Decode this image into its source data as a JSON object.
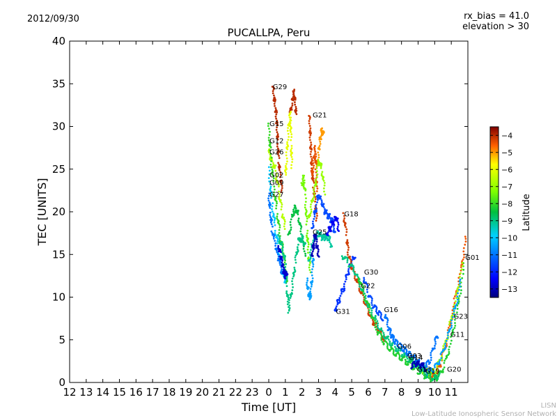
{
  "header": {
    "date": "2012/09/30",
    "rx_bias": "rx_bias = 41.0",
    "elevation": "elevation > 30"
  },
  "credit": {
    "line1": "LISN",
    "line2": "Low-Latitude Ionospheric Sensor Network"
  },
  "chart_data": {
    "type": "scatter",
    "title": "PUCALLPA, Peru",
    "xlabel": "Time [UT]",
    "ylabel": "TEC [UNITS]",
    "ylim": [
      0,
      40
    ],
    "yticks": [
      0,
      5,
      10,
      15,
      20,
      25,
      30,
      35,
      40
    ],
    "xlim": [
      -12,
      12
    ],
    "xtick_labels": [
      "12",
      "13",
      "14",
      "15",
      "16",
      "17",
      "18",
      "19",
      "20",
      "21",
      "22",
      "23",
      "0",
      "1",
      "2",
      "3",
      "4",
      "5",
      "6",
      "7",
      "8",
      "9",
      "10",
      "11"
    ],
    "colorbar": {
      "label": "Latitude",
      "range": [
        -13.5,
        -3.5
      ],
      "ticks": [
        -4,
        -5,
        -6,
        -7,
        -8,
        -9,
        -10,
        -11,
        -12,
        -13
      ],
      "tick_labels": [
        "−4",
        "−5",
        "−6",
        "−7",
        "−8",
        "−9",
        "−10",
        "−11",
        "−12",
        "−13"
      ]
    },
    "satellite_labels": [
      {
        "name": "G29",
        "x": 0.2,
        "y": 34.6
      },
      {
        "name": "G21",
        "x": 2.6,
        "y": 31.3
      },
      {
        "name": "G15",
        "x": 0.0,
        "y": 30.3
      },
      {
        "name": "G12",
        "x": 0.0,
        "y": 28.3
      },
      {
        "name": "G26",
        "x": 0.0,
        "y": 27.0
      },
      {
        "name": "G02",
        "x": 0.0,
        "y": 24.3
      },
      {
        "name": "G09",
        "x": 0.0,
        "y": 23.4
      },
      {
        "name": "G27",
        "x": 0.0,
        "y": 22.0
      },
      {
        "name": "G18",
        "x": 4.5,
        "y": 19.7
      },
      {
        "name": "G25",
        "x": 2.6,
        "y": 17.6
      },
      {
        "name": "G01",
        "x": 11.8,
        "y": 14.6
      },
      {
        "name": "G30",
        "x": 5.7,
        "y": 12.9
      },
      {
        "name": "G22",
        "x": 5.5,
        "y": 11.3
      },
      {
        "name": "G31",
        "x": 4.0,
        "y": 8.3
      },
      {
        "name": "G16",
        "x": 6.9,
        "y": 8.5
      },
      {
        "name": "G23",
        "x": 11.1,
        "y": 7.7
      },
      {
        "name": "G11",
        "x": 10.9,
        "y": 5.6
      },
      {
        "name": "G06",
        "x": 7.7,
        "y": 4.2
      },
      {
        "name": "G03",
        "x": 8.3,
        "y": 3.1
      },
      {
        "name": "G14",
        "x": 8.4,
        "y": 2.9
      },
      {
        "name": "G13",
        "x": 8.9,
        "y": 1.5
      },
      {
        "name": "G19",
        "x": 9.4,
        "y": 1.3
      },
      {
        "name": "G20",
        "x": 10.7,
        "y": 1.5
      }
    ],
    "traces": [
      {
        "lat": -4.0,
        "points": [
          [
            0.25,
            34.5
          ],
          [
            0.35,
            33
          ],
          [
            0.45,
            31.5
          ],
          [
            0.5,
            30
          ],
          [
            0.55,
            28
          ],
          [
            0.6,
            26
          ],
          [
            0.7,
            24
          ],
          [
            0.8,
            22.5
          ]
        ]
      },
      {
        "lat": -4.0,
        "points": [
          [
            1.3,
            31.5
          ],
          [
            1.4,
            32.8
          ],
          [
            1.5,
            34
          ],
          [
            1.6,
            33
          ],
          [
            1.65,
            31
          ]
        ]
      },
      {
        "lat": -4.2,
        "points": [
          [
            2.45,
            31
          ],
          [
            2.5,
            29
          ],
          [
            2.55,
            27
          ],
          [
            2.6,
            25
          ],
          [
            2.7,
            23
          ],
          [
            2.8,
            21
          ],
          [
            2.9,
            19
          ]
        ]
      },
      {
        "lat": -5.0,
        "points": [
          [
            2.9,
            25
          ],
          [
            3.0,
            27
          ],
          [
            3.1,
            28.5
          ],
          [
            3.2,
            29.5
          ],
          [
            3.3,
            29
          ]
        ]
      },
      {
        "lat": -4.4,
        "points": [
          [
            2.6,
            24
          ],
          [
            2.7,
            26
          ],
          [
            2.8,
            27.5
          ],
          [
            2.85,
            25
          ],
          [
            2.9,
            22
          ]
        ]
      },
      {
        "lat": -6.0,
        "points": [
          [
            1.0,
            24
          ],
          [
            1.1,
            27
          ],
          [
            1.2,
            30
          ],
          [
            1.3,
            31.5
          ],
          [
            1.35,
            28
          ],
          [
            1.4,
            25
          ]
        ]
      },
      {
        "lat": -6.6,
        "points": [
          [
            0.0,
            27
          ],
          [
            0.2,
            26
          ],
          [
            0.4,
            25
          ],
          [
            0.6,
            22.5
          ],
          [
            0.8,
            20
          ],
          [
            1.0,
            18
          ]
        ]
      },
      {
        "lat": -7.0,
        "points": [
          [
            2.4,
            19
          ],
          [
            2.6,
            21
          ],
          [
            2.8,
            23
          ],
          [
            3.0,
            26
          ],
          [
            3.2,
            25
          ],
          [
            3.4,
            22
          ]
        ]
      },
      {
        "lat": -7.4,
        "points": [
          [
            2.0,
            23
          ],
          [
            2.1,
            24
          ],
          [
            2.2,
            22
          ],
          [
            2.3,
            18
          ],
          [
            2.4,
            15
          ],
          [
            2.5,
            13
          ]
        ]
      },
      {
        "lat": -8.0,
        "points": [
          [
            0.0,
            30
          ],
          [
            0.1,
            27
          ],
          [
            0.3,
            23
          ],
          [
            0.5,
            20
          ],
          [
            0.7,
            17
          ],
          [
            0.9,
            15
          ],
          [
            1.0,
            13
          ],
          [
            1.1,
            12
          ]
        ]
      },
      {
        "lat": -8.5,
        "points": [
          [
            1.2,
            17
          ],
          [
            1.4,
            19.5
          ],
          [
            1.6,
            20.5
          ],
          [
            1.8,
            19.5
          ],
          [
            2.0,
            17
          ],
          [
            2.2,
            15
          ]
        ]
      },
      {
        "lat": -9.0,
        "points": [
          [
            0.6,
            17
          ],
          [
            0.8,
            16
          ],
          [
            1.0,
            14
          ],
          [
            1.1,
            11
          ],
          [
            1.2,
            8.5
          ],
          [
            1.4,
            11
          ],
          [
            1.6,
            14
          ],
          [
            1.8,
            16.5
          ],
          [
            2.0,
            17
          ],
          [
            2.2,
            16
          ]
        ]
      },
      {
        "lat": -9.2,
        "points": [
          [
            2.4,
            14
          ],
          [
            2.6,
            16
          ],
          [
            2.8,
            17
          ],
          [
            3.0,
            17.5
          ],
          [
            3.2,
            17
          ],
          [
            3.4,
            17
          ],
          [
            3.6,
            17
          ],
          [
            3.8,
            16
          ]
        ]
      },
      {
        "lat": -10.0,
        "points": [
          [
            0.0,
            25
          ],
          [
            0.2,
            21
          ],
          [
            0.4,
            18
          ],
          [
            0.6,
            15.5
          ],
          [
            0.8,
            13
          ],
          [
            1.0,
            12
          ]
        ]
      },
      {
        "lat": -10.5,
        "points": [
          [
            2.3,
            12
          ],
          [
            2.4,
            10.5
          ],
          [
            2.5,
            10
          ],
          [
            2.6,
            12
          ],
          [
            2.7,
            15
          ]
        ]
      },
      {
        "lat": -11.0,
        "points": [
          [
            0.0,
            22
          ],
          [
            0.1,
            20
          ],
          [
            0.2,
            18
          ],
          [
            0.4,
            16
          ],
          [
            0.6,
            14.5
          ],
          [
            0.8,
            13
          ]
        ]
      },
      {
        "lat": -11.5,
        "points": [
          [
            2.6,
            18
          ],
          [
            2.8,
            20
          ],
          [
            3.0,
            22
          ],
          [
            3.2,
            21
          ],
          [
            3.4,
            20
          ],
          [
            3.6,
            19.5
          ],
          [
            3.8,
            19
          ],
          [
            4.0,
            17.5
          ]
        ]
      },
      {
        "lat": -11.8,
        "points": [
          [
            4.0,
            8.5
          ],
          [
            4.2,
            9.5
          ],
          [
            4.5,
            11
          ],
          [
            4.8,
            13
          ],
          [
            5.0,
            14
          ],
          [
            5.2,
            15
          ]
        ]
      },
      {
        "lat": -12.8,
        "points": [
          [
            0.6,
            16
          ],
          [
            0.7,
            15
          ],
          [
            0.8,
            14
          ],
          [
            0.9,
            13
          ],
          [
            1.0,
            12.5
          ],
          [
            1.1,
            13
          ]
        ]
      },
      {
        "lat": -12.5,
        "points": [
          [
            3.5,
            17.5
          ],
          [
            3.7,
            18
          ],
          [
            3.9,
            18.8
          ],
          [
            4.1,
            19.3
          ],
          [
            4.2,
            18
          ]
        ]
      },
      {
        "lat": -13.0,
        "points": [
          [
            2.6,
            15
          ],
          [
            2.7,
            16
          ],
          [
            2.8,
            17.5
          ],
          [
            2.9,
            16
          ],
          [
            3.0,
            15
          ]
        ]
      },
      {
        "lat": -4.2,
        "points": [
          [
            4.5,
            20
          ],
          [
            4.7,
            17
          ],
          [
            4.8,
            15
          ],
          [
            5.0,
            13.5
          ],
          [
            5.3,
            12
          ],
          [
            5.6,
            10.5
          ],
          [
            5.9,
            9
          ],
          [
            6.2,
            7.5
          ],
          [
            6.5,
            6.5
          ],
          [
            6.8,
            5.5
          ],
          [
            7.0,
            4.8
          ]
        ]
      },
      {
        "lat": -9.0,
        "points": [
          [
            4.4,
            15
          ],
          [
            4.8,
            14
          ],
          [
            5.2,
            13
          ],
          [
            5.6,
            11
          ],
          [
            6.0,
            9
          ],
          [
            6.4,
            7.5
          ],
          [
            6.8,
            6
          ],
          [
            7.2,
            5
          ],
          [
            7.6,
            4.2
          ],
          [
            8.0,
            3.5
          ],
          [
            8.4,
            2.8
          ],
          [
            8.8,
            2.2
          ],
          [
            9.2,
            1.8
          ],
          [
            9.6,
            1.5
          ]
        ]
      },
      {
        "lat": -11.5,
        "points": [
          [
            5.7,
            12.5
          ],
          [
            6.0,
            10.5
          ],
          [
            6.3,
            9
          ],
          [
            6.6,
            8.2
          ],
          [
            6.9,
            7.5
          ]
        ]
      },
      {
        "lat": -11.0,
        "points": [
          [
            7.0,
            8.2
          ],
          [
            7.2,
            6.5
          ],
          [
            7.4,
            5.5
          ],
          [
            7.6,
            4.8
          ],
          [
            7.9,
            4.3
          ],
          [
            8.2,
            3.8
          ],
          [
            8.5,
            3.3
          ],
          [
            8.8,
            2.8
          ],
          [
            9.1,
            2.2
          ],
          [
            9.4,
            1.8
          ],
          [
            9.7,
            2.5
          ],
          [
            10.0,
            4.5
          ],
          [
            10.2,
            5.8
          ]
        ]
      },
      {
        "lat": -8.2,
        "points": [
          [
            5.4,
            12.5
          ],
          [
            5.8,
            10
          ],
          [
            6.2,
            7.8
          ],
          [
            6.6,
            5.8
          ],
          [
            7.0,
            4.6
          ],
          [
            7.4,
            3.8
          ],
          [
            7.8,
            3.2
          ],
          [
            8.2,
            2.6
          ],
          [
            8.6,
            2.0
          ],
          [
            9.0,
            1.4
          ],
          [
            9.4,
            0.8
          ],
          [
            9.8,
            0.4
          ],
          [
            10.2,
            0.6
          ],
          [
            10.6,
            2
          ],
          [
            11.0,
            5
          ],
          [
            11.4,
            9
          ],
          [
            11.8,
            14
          ]
        ]
      },
      {
        "lat": -4.5,
        "points": [
          [
            9.5,
            1.2
          ],
          [
            9.8,
            0.8
          ],
          [
            10.1,
            1.0
          ],
          [
            10.4,
            2.5
          ],
          [
            10.8,
            5.5
          ],
          [
            11.2,
            9.5
          ],
          [
            11.6,
            13.5
          ],
          [
            11.9,
            17
          ]
        ]
      },
      {
        "lat": -6.8,
        "points": [
          [
            9.3,
            1.5
          ],
          [
            9.7,
            1.0
          ],
          [
            10.1,
            1.5
          ],
          [
            10.5,
            3.5
          ],
          [
            10.9,
            6.5
          ],
          [
            11.3,
            10
          ],
          [
            11.7,
            14
          ]
        ]
      },
      {
        "lat": -10.5,
        "points": [
          [
            8.8,
            2.2
          ],
          [
            9.2,
            1.6
          ],
          [
            9.6,
            1.2
          ],
          [
            10.0,
            1.6
          ],
          [
            10.4,
            3
          ],
          [
            10.8,
            5.5
          ],
          [
            11.2,
            8.5
          ],
          [
            11.6,
            12
          ]
        ]
      },
      {
        "lat": -8.8,
        "points": [
          [
            8.4,
            2.8
          ],
          [
            8.8,
            2.2
          ],
          [
            9.2,
            1.4
          ],
          [
            9.6,
            0.8
          ],
          [
            10.0,
            0.5
          ],
          [
            10.3,
            1.0
          ]
        ]
      },
      {
        "lat": -13.0,
        "points": [
          [
            8.6,
            2.0
          ],
          [
            8.9,
            2.2
          ],
          [
            9.2,
            2.0
          ],
          [
            9.5,
            1.6
          ]
        ]
      }
    ]
  }
}
